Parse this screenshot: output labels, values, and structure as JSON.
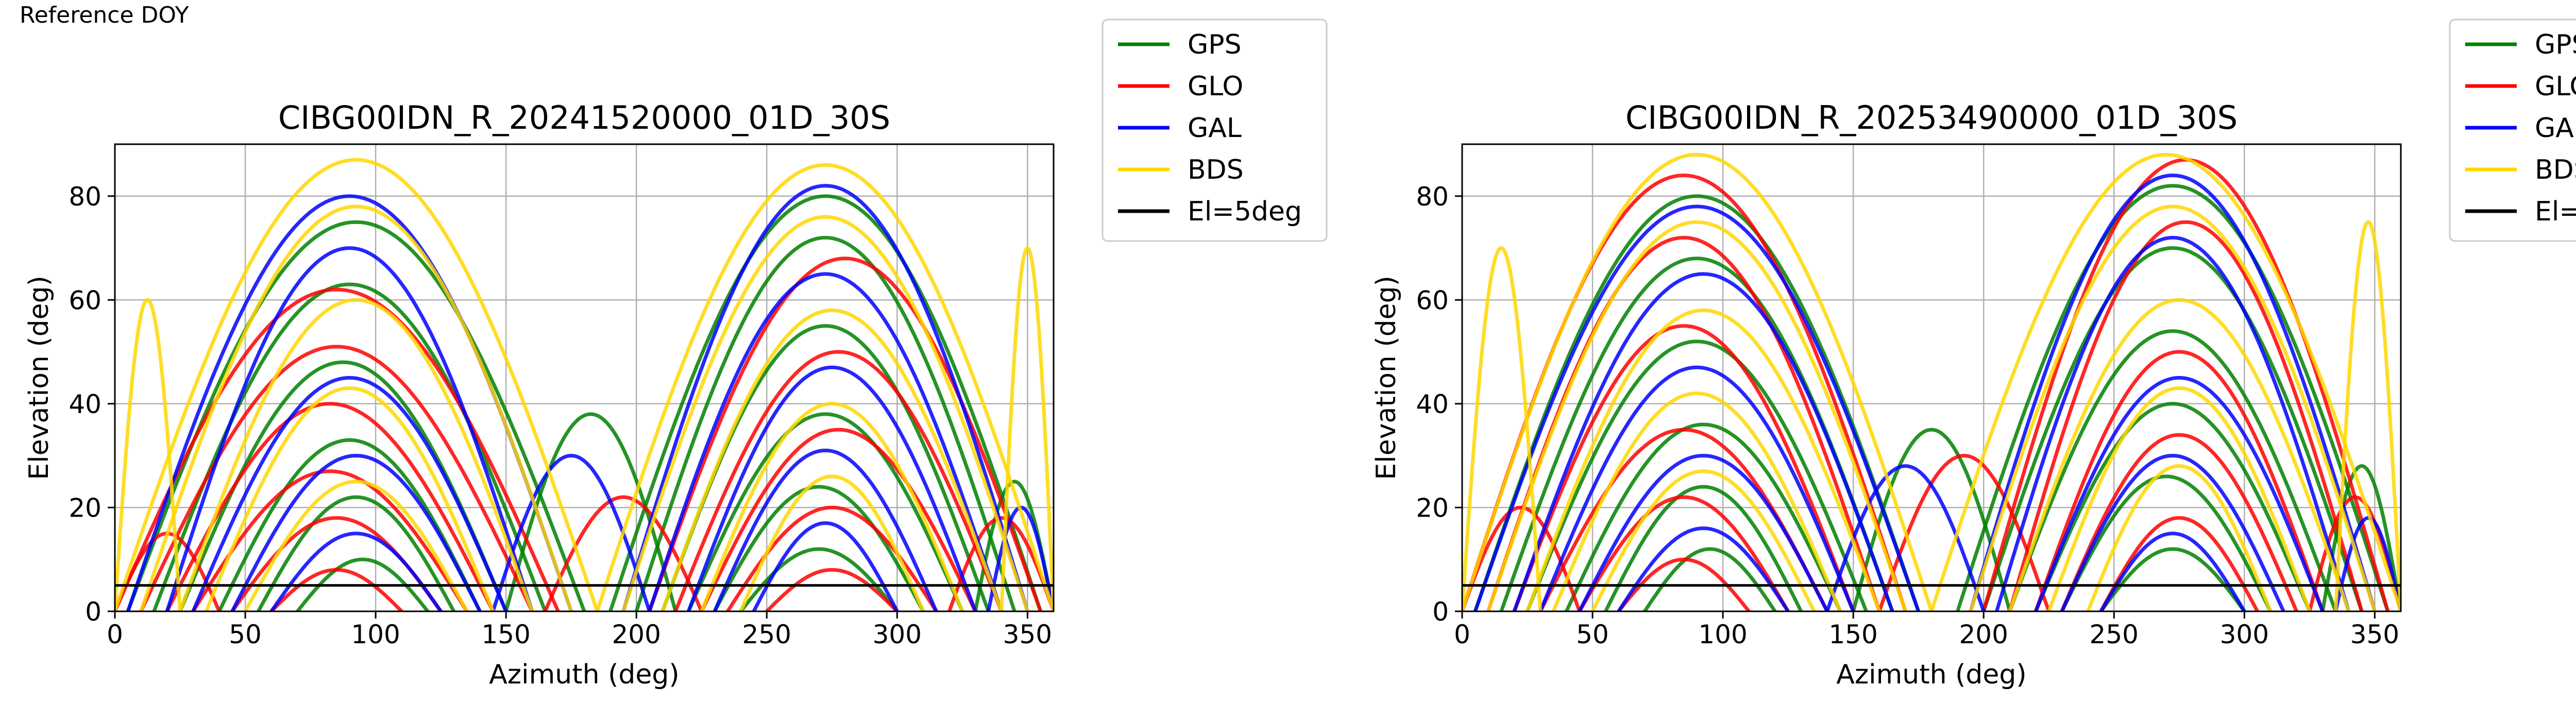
{
  "page": {
    "label": "Reference DOY"
  },
  "legend": {
    "entries": [
      {
        "name": "GPS",
        "color": "#008000"
      },
      {
        "name": "GLO",
        "color": "#ff0000"
      },
      {
        "name": "GAL",
        "color": "#0000ff"
      },
      {
        "name": "BDS",
        "color": "#ffd700"
      },
      {
        "name": "El=5deg",
        "color": "#000000"
      }
    ]
  },
  "chart_data": [
    {
      "type": "scatter",
      "title": "CIBG00IDN_R_20241520000_01D_30S",
      "xlabel": "Azimuth (deg)",
      "ylabel": "Elevation (deg)",
      "xlim": [
        0,
        360
      ],
      "ylim": [
        0,
        90
      ],
      "xticks": [
        0,
        50,
        100,
        150,
        200,
        250,
        300,
        350
      ],
      "yticks": [
        0,
        20,
        40,
        60,
        80
      ],
      "grid": true,
      "legend_position": "outside-upper-right",
      "elevation_mask": {
        "label": "El=5deg",
        "elevation": 5
      },
      "series": [
        {
          "name": "GPS",
          "color": "#008000",
          "arcs": [
            {
              "az0": 5,
              "az1": 180,
              "peak": 75
            },
            {
              "az0": 15,
              "az1": 165,
              "peak": 63
            },
            {
              "az0": 25,
              "az1": 150,
              "peak": 48
            },
            {
              "az0": 40,
              "az1": 140,
              "peak": 33
            },
            {
              "az0": 55,
              "az1": 130,
              "peak": 22
            },
            {
              "az0": 70,
              "az1": 120,
              "peak": 10
            },
            {
              "az0": 190,
              "az1": 355,
              "peak": 80
            },
            {
              "az0": 200,
              "az1": 345,
              "peak": 72
            },
            {
              "az0": 210,
              "az1": 335,
              "peak": 55
            },
            {
              "az0": 220,
              "az1": 325,
              "peak": 38
            },
            {
              "az0": 230,
              "az1": 310,
              "peak": 24
            },
            {
              "az0": 240,
              "az1": 300,
              "peak": 12
            },
            {
              "az0": 150,
              "az1": 215,
              "peak": 38
            },
            {
              "az0": 330,
              "az1": 360,
              "peak": 25
            }
          ]
        },
        {
          "name": "GLO",
          "color": "#ff0000",
          "arcs": [
            {
              "az0": 0,
              "az1": 170,
              "peak": 62
            },
            {
              "az0": 10,
              "az1": 160,
              "peak": 51
            },
            {
              "az0": 20,
              "az1": 145,
              "peak": 40
            },
            {
              "az0": 30,
              "az1": 135,
              "peak": 27
            },
            {
              "az0": 45,
              "az1": 125,
              "peak": 18
            },
            {
              "az0": 60,
              "az1": 110,
              "peak": 8
            },
            {
              "az0": 205,
              "az1": 355,
              "peak": 68
            },
            {
              "az0": 215,
              "az1": 340,
              "peak": 50
            },
            {
              "az0": 225,
              "az1": 330,
              "peak": 35
            },
            {
              "az0": 235,
              "az1": 315,
              "peak": 20
            },
            {
              "az0": 250,
              "az1": 300,
              "peak": 8
            },
            {
              "az0": 165,
              "az1": 225,
              "peak": 22
            },
            {
              "az0": 0,
              "az1": 40,
              "peak": 15
            },
            {
              "az0": 320,
              "az1": 360,
              "peak": 18
            }
          ]
        },
        {
          "name": "GAL",
          "color": "#0000ff",
          "arcs": [
            {
              "az0": 5,
              "az1": 175,
              "peak": 80
            },
            {
              "az0": 20,
              "az1": 160,
              "peak": 70
            },
            {
              "az0": 30,
              "az1": 150,
              "peak": 45
            },
            {
              "az0": 45,
              "az1": 140,
              "peak": 30
            },
            {
              "az0": 60,
              "az1": 125,
              "peak": 15
            },
            {
              "az0": 195,
              "az1": 350,
              "peak": 82
            },
            {
              "az0": 205,
              "az1": 340,
              "peak": 65
            },
            {
              "az0": 220,
              "az1": 330,
              "peak": 47
            },
            {
              "az0": 230,
              "az1": 315,
              "peak": 31
            },
            {
              "az0": 245,
              "az1": 300,
              "peak": 17
            },
            {
              "az0": 145,
              "az1": 205,
              "peak": 30
            },
            {
              "az0": 335,
              "az1": 360,
              "peak": 20
            }
          ]
        },
        {
          "name": "BDS",
          "color": "#ffd700",
          "arcs": [
            {
              "az0": 0,
              "az1": 185,
              "peak": 87
            },
            {
              "az0": 10,
              "az1": 175,
              "peak": 78
            },
            {
              "az0": 25,
              "az1": 160,
              "peak": 60
            },
            {
              "az0": 35,
              "az1": 145,
              "peak": 43
            },
            {
              "az0": 50,
              "az1": 135,
              "peak": 25
            },
            {
              "az0": 185,
              "az1": 360,
              "peak": 86
            },
            {
              "az0": 195,
              "az1": 350,
              "peak": 76
            },
            {
              "az0": 210,
              "az1": 340,
              "peak": 58
            },
            {
              "az0": 225,
              "az1": 325,
              "peak": 40
            },
            {
              "az0": 240,
              "az1": 310,
              "peak": 26
            },
            {
              "az0": 0,
              "az1": 25,
              "peak": 60
            },
            {
              "az0": 340,
              "az1": 360,
              "peak": 70
            }
          ]
        }
      ]
    },
    {
      "type": "scatter",
      "title": "CIBG00IDN_R_20253490000_01D_30S",
      "xlabel": "Azimuth (deg)",
      "ylabel": "Elevation (deg)",
      "xlim": [
        0,
        360
      ],
      "ylim": [
        0,
        90
      ],
      "xticks": [
        0,
        50,
        100,
        150,
        200,
        250,
        300,
        350
      ],
      "yticks": [
        0,
        20,
        40,
        60,
        80
      ],
      "grid": true,
      "legend_position": "outside-upper-right",
      "elevation_mask": {
        "label": "El=5deg",
        "elevation": 5
      },
      "series": [
        {
          "name": "GPS",
          "color": "#008000",
          "arcs": [
            {
              "az0": 5,
              "az1": 175,
              "peak": 80
            },
            {
              "az0": 15,
              "az1": 165,
              "peak": 68
            },
            {
              "az0": 25,
              "az1": 155,
              "peak": 52
            },
            {
              "az0": 40,
              "az1": 145,
              "peak": 36
            },
            {
              "az0": 55,
              "az1": 130,
              "peak": 24
            },
            {
              "az0": 70,
              "az1": 120,
              "peak": 12
            },
            {
              "az0": 190,
              "az1": 355,
              "peak": 82
            },
            {
              "az0": 200,
              "az1": 345,
              "peak": 70
            },
            {
              "az0": 210,
              "az1": 335,
              "peak": 54
            },
            {
              "az0": 220,
              "az1": 325,
              "peak": 40
            },
            {
              "az0": 230,
              "az1": 310,
              "peak": 26
            },
            {
              "az0": 245,
              "az1": 300,
              "peak": 12
            },
            {
              "az0": 150,
              "az1": 210,
              "peak": 35
            },
            {
              "az0": 330,
              "az1": 360,
              "peak": 28
            }
          ]
        },
        {
          "name": "GLO",
          "color": "#ff0000",
          "arcs": [
            {
              "az0": 0,
              "az1": 170,
              "peak": 84
            },
            {
              "az0": 10,
              "az1": 160,
              "peak": 72
            },
            {
              "az0": 20,
              "az1": 150,
              "peak": 55
            },
            {
              "az0": 30,
              "az1": 140,
              "peak": 35
            },
            {
              "az0": 45,
              "az1": 125,
              "peak": 22
            },
            {
              "az0": 60,
              "az1": 110,
              "peak": 10
            },
            {
              "az0": 200,
              "az1": 355,
              "peak": 87
            },
            {
              "az0": 210,
              "az1": 345,
              "peak": 75
            },
            {
              "az0": 220,
              "az1": 330,
              "peak": 50
            },
            {
              "az0": 230,
              "az1": 320,
              "peak": 34
            },
            {
              "az0": 245,
              "az1": 305,
              "peak": 18
            },
            {
              "az0": 160,
              "az1": 225,
              "peak": 30
            },
            {
              "az0": 0,
              "az1": 45,
              "peak": 20
            },
            {
              "az0": 325,
              "az1": 360,
              "peak": 22
            }
          ]
        },
        {
          "name": "GAL",
          "color": "#0000ff",
          "arcs": [
            {
              "az0": 5,
              "az1": 175,
              "peak": 78
            },
            {
              "az0": 20,
              "az1": 165,
              "peak": 65
            },
            {
              "az0": 30,
              "az1": 150,
              "peak": 47
            },
            {
              "az0": 45,
              "az1": 140,
              "peak": 30
            },
            {
              "az0": 60,
              "az1": 125,
              "peak": 16
            },
            {
              "az0": 195,
              "az1": 350,
              "peak": 84
            },
            {
              "az0": 205,
              "az1": 340,
              "peak": 72
            },
            {
              "az0": 220,
              "az1": 330,
              "peak": 45
            },
            {
              "az0": 230,
              "az1": 315,
              "peak": 30
            },
            {
              "az0": 245,
              "az1": 300,
              "peak": 15
            },
            {
              "az0": 140,
              "az1": 200,
              "peak": 28
            },
            {
              "az0": 335,
              "az1": 360,
              "peak": 18
            }
          ]
        },
        {
          "name": "BDS",
          "color": "#ffd700",
          "arcs": [
            {
              "az0": 0,
              "az1": 180,
              "peak": 88
            },
            {
              "az0": 10,
              "az1": 170,
              "peak": 75
            },
            {
              "az0": 25,
              "az1": 160,
              "peak": 58
            },
            {
              "az0": 35,
              "az1": 145,
              "peak": 42
            },
            {
              "az0": 50,
              "az1": 135,
              "peak": 27
            },
            {
              "az0": 180,
              "az1": 360,
              "peak": 88
            },
            {
              "az0": 195,
              "az1": 350,
              "peak": 78
            },
            {
              "az0": 210,
              "az1": 340,
              "peak": 60
            },
            {
              "az0": 225,
              "az1": 325,
              "peak": 43
            },
            {
              "az0": 240,
              "az1": 310,
              "peak": 28
            },
            {
              "az0": 0,
              "az1": 30,
              "peak": 70
            },
            {
              "az0": 335,
              "az1": 360,
              "peak": 75
            }
          ]
        }
      ]
    }
  ]
}
